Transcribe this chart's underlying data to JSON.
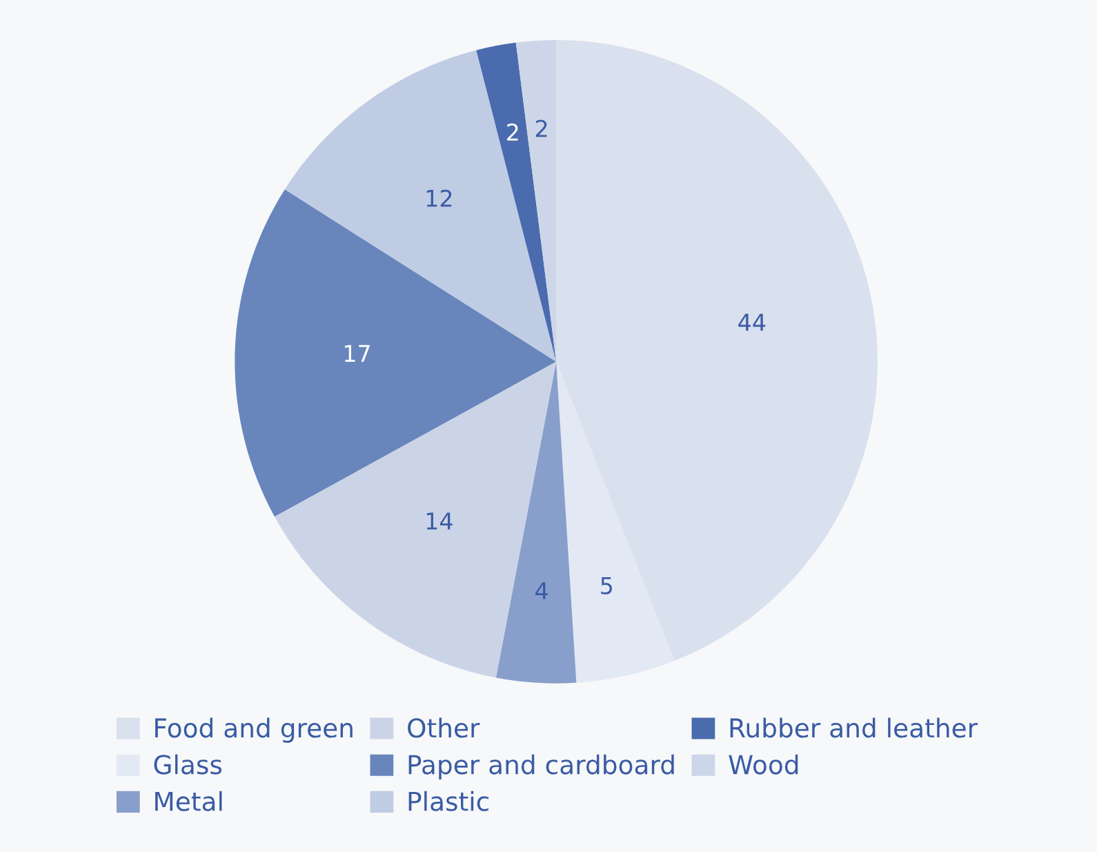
{
  "chart_data": {
    "type": "pie",
    "categories": [
      "Food and green",
      "Glass",
      "Metal",
      "Other",
      "Paper and cardboard",
      "Plastic",
      "Rubber and leather",
      "Wood"
    ],
    "values": [
      44,
      5,
      4,
      14,
      17,
      12,
      2,
      2
    ],
    "colors": [
      "#d9e0ee",
      "#e3e9f4",
      "#889fcb",
      "#cbd4e7",
      "#6886bc",
      "#bfcce4",
      "#4a6bae",
      "#cdd6e9"
    ],
    "data_labels": true,
    "legend": "bottom"
  }
}
